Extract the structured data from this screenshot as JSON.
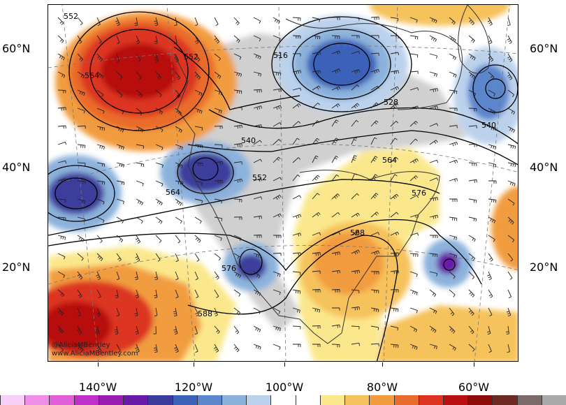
{
  "latitude_labels": [
    "60°N",
    "40°N",
    "20°N"
  ],
  "longitude_labels": [
    "140°W",
    "120°W",
    "100°W",
    "80°W",
    "60°W"
  ],
  "contour_labels": [
    "552",
    "552",
    "564",
    "516",
    "528",
    "540",
    "540",
    "552",
    "564",
    "564",
    "576",
    "588",
    "576",
    "588"
  ],
  "credits": {
    "handle": "@AliciaMBentley",
    "website": "www.AliciaMBentley.com"
  },
  "colorbar_colors": [
    "#f7d0f7",
    "#ee8ee6",
    "#e05ed8",
    "#c030c8",
    "#9a1cb0",
    "#6a1ca8",
    "#3c3c9c",
    "#3a62b8",
    "#5c86cc",
    "#8cb2dc",
    "#bcd2ec",
    "#ffffff",
    "#ffffff",
    "#fbe88c",
    "#f6c25c",
    "#f29c40",
    "#ea6c2c",
    "#dc3420",
    "#b81010",
    "#8c0c0c",
    "#6c2a22",
    "#7a6a68",
    "#a8a8a8"
  ]
}
